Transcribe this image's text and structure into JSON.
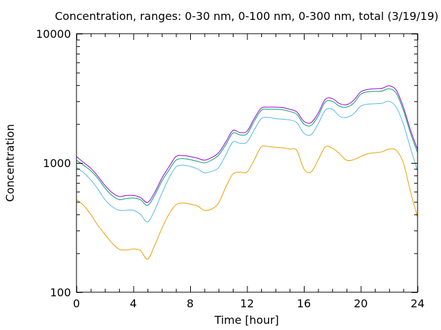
{
  "chart_data": {
    "type": "line",
    "title": "Concentration, ranges: 0-30 nm, 0-100 nm, 0-300 nm, total (3/19/19)",
    "xlabel": "Time [hour]",
    "ylabel": "Concentration",
    "xlim": [
      0,
      24
    ],
    "ylim": [
      100,
      10000
    ],
    "yscale": "log",
    "grid": false,
    "legend": "none",
    "x_ticks": [
      0,
      4,
      8,
      12,
      16,
      20,
      24
    ],
    "x_tick_labels": [
      "0",
      "4",
      "8",
      "12",
      "16",
      "20",
      "24"
    ],
    "y_ticks": [
      100,
      1000,
      10000
    ],
    "y_tick_labels": [
      "100",
      "1000",
      "10000"
    ],
    "x": [
      0,
      0.5,
      1,
      1.5,
      2,
      2.5,
      3,
      3.5,
      4,
      4.5,
      5,
      5.5,
      6,
      6.5,
      7,
      7.5,
      8,
      8.5,
      9,
      9.5,
      10,
      10.5,
      11,
      11.5,
      12,
      12.5,
      13,
      13.5,
      14,
      14.5,
      15,
      15.5,
      16,
      16.5,
      17,
      17.5,
      18,
      18.5,
      19,
      19.5,
      20,
      20.5,
      21,
      21.5,
      22,
      22.5,
      23,
      23.5,
      24
    ],
    "series": [
      {
        "color": "#e69f00",
        "values": [
          520,
          470,
          400,
          330,
          280,
          240,
          215,
          212,
          216,
          210,
          180,
          230,
          310,
          400,
          475,
          490,
          480,
          465,
          430,
          440,
          490,
          650,
          820,
          850,
          850,
          1050,
          1330,
          1340,
          1320,
          1310,
          1280,
          1250,
          900,
          850,
          1050,
          1330,
          1300,
          1180,
          1050,
          1060,
          1120,
          1180,
          1200,
          1220,
          1280,
          1250,
          1000,
          600,
          380
        ]
      },
      {
        "color": "#56b4e9",
        "values": [
          920,
          840,
          740,
          630,
          520,
          460,
          430,
          430,
          430,
          400,
          350,
          430,
          580,
          760,
          930,
          960,
          940,
          900,
          840,
          860,
          920,
          1150,
          1450,
          1420,
          1450,
          1800,
          2200,
          2250,
          2200,
          2180,
          2150,
          2050,
          1700,
          1650,
          2000,
          2550,
          2600,
          2300,
          2250,
          2400,
          2750,
          2850,
          2870,
          2900,
          3000,
          2700,
          2000,
          1300,
          870
        ]
      },
      {
        "color": "#009e73",
        "values": [
          1050,
          960,
          870,
          760,
          640,
          560,
          520,
          530,
          535,
          520,
          470,
          560,
          720,
          880,
          1050,
          1080,
          1060,
          1030,
          1000,
          1050,
          1150,
          1380,
          1700,
          1650,
          1680,
          2100,
          2550,
          2600,
          2600,
          2580,
          2500,
          2380,
          2000,
          1950,
          2300,
          2950,
          3000,
          2750,
          2700,
          2900,
          3400,
          3550,
          3580,
          3600,
          3750,
          3450,
          2550,
          1700,
          1200
        ]
      },
      {
        "color": "#9400d3",
        "values": [
          1120,
          1010,
          910,
          790,
          670,
          590,
          550,
          560,
          560,
          540,
          495,
          590,
          760,
          930,
          1120,
          1140,
          1120,
          1090,
          1050,
          1100,
          1200,
          1450,
          1780,
          1720,
          1760,
          2200,
          2650,
          2700,
          2700,
          2680,
          2600,
          2480,
          2100,
          2050,
          2420,
          3100,
          3150,
          2880,
          2820,
          3050,
          3550,
          3700,
          3750,
          3780,
          3950,
          3650,
          2700,
          1800,
          1270
        ]
      }
    ]
  }
}
